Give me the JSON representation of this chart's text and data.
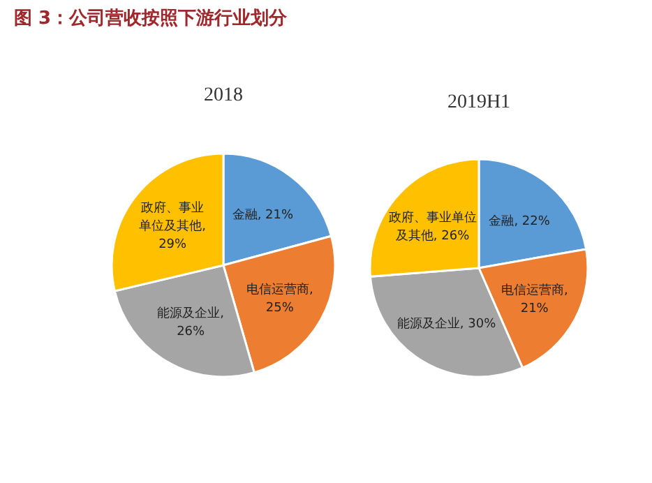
{
  "chart_data": [
    {
      "type": "pie",
      "title": "2018",
      "annotations": [
        "图 3：公司营收按照下游行业划分"
      ],
      "categories": [
        null,
        null,
        null,
        null
      ],
      "values": [
        21,
        25,
        26,
        29
      ],
      "value_labels": [
        "金融, 21%",
        "电信运营商, 25%",
        "能源及企业, 26%",
        "政府、事业单位及其他, 29%"
      ],
      "colors": [
        "#5b9bd5",
        "#ed7d31",
        "#a5a5a5",
        "#ffc000"
      ]
    },
    {
      "type": "pie",
      "title": "2019H1",
      "categories": [
        null,
        null,
        null,
        null
      ],
      "values": [
        22,
        21,
        30,
        26
      ],
      "value_labels": [
        "金融, 22%",
        "电信运营商, 21%",
        "能源及企业, 30%",
        "政府、事业单位及其他, 26%"
      ],
      "colors": [
        "#5b9bd5",
        "#ed7d31",
        "#a5a5a5",
        "#ffc000"
      ]
    }
  ]
}
